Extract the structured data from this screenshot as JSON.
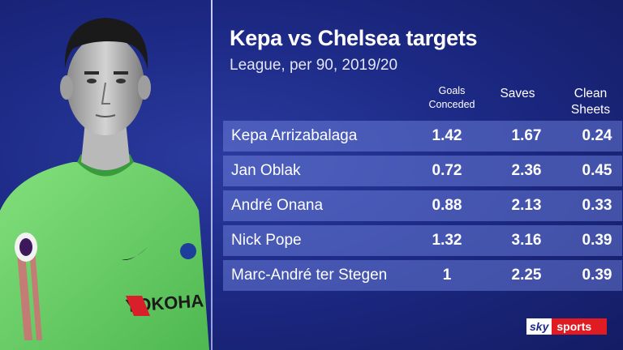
{
  "title": "Kepa vs Chelsea targets",
  "subtitle": "League, per 90, 2019/20",
  "columns": {
    "goals_line1": "Goals",
    "goals_line2": "Conceded",
    "saves": "Saves",
    "clean_line1": "Clean",
    "clean_line2": "Sheets"
  },
  "rows": [
    {
      "name": "Kepa Arrizabalaga",
      "goals": "1.42",
      "saves": "1.67",
      "clean": "0.24"
    },
    {
      "name": "Jan Oblak",
      "goals": "0.72",
      "saves": "2.36",
      "clean": "0.45"
    },
    {
      "name": "André Onana",
      "goals": "0.88",
      "saves": "2.13",
      "clean": "0.33"
    },
    {
      "name": "Nick Pope",
      "goals": "1.32",
      "saves": "3.16",
      "clean": "0.39"
    },
    {
      "name": "Marc-André ter Stegen",
      "goals": "1",
      "saves": "2.25",
      "clean": "0.39"
    }
  ],
  "logo": {
    "part1": "sky",
    "part2": "sports"
  },
  "colors": {
    "background": "#1d2a86",
    "row": "#5a6bd0",
    "jersey": "#6fd36a",
    "logo_red": "#e11b22"
  }
}
